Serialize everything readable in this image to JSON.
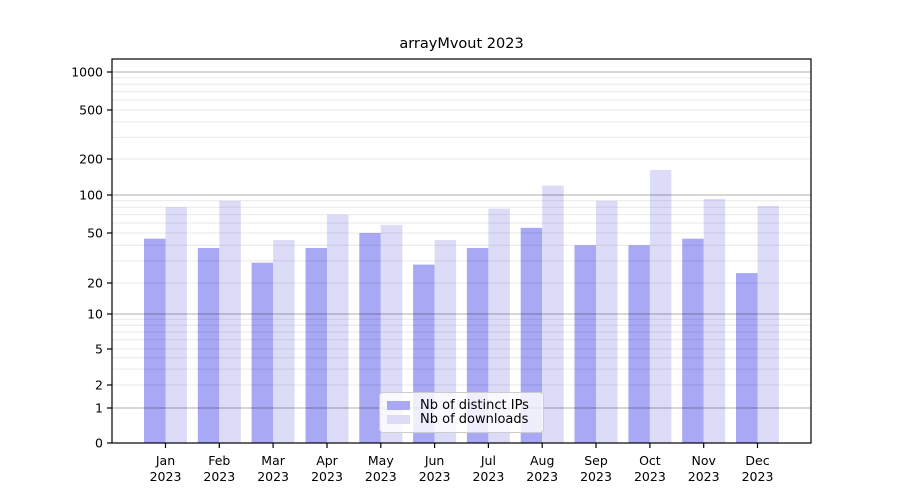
{
  "chart_data": {
    "type": "bar",
    "title": "arrayMvout 2023",
    "categories": [
      "Jan",
      "Feb",
      "Mar",
      "Apr",
      "May",
      "Jun",
      "Jul",
      "Aug",
      "Sep",
      "Oct",
      "Nov",
      "Dec"
    ],
    "category_year": "2023",
    "series": [
      {
        "name": "Nb of distinct IPs",
        "color": "#a8a8f5",
        "values": [
          45,
          38,
          29,
          38,
          50,
          28,
          38,
          55,
          40,
          40,
          45,
          24
        ]
      },
      {
        "name": "Nb of downloads",
        "color": "#dcdcf9",
        "values": [
          80,
          90,
          44,
          70,
          58,
          44,
          78,
          120,
          90,
          162,
          93,
          82
        ]
      }
    ],
    "y_axis": {
      "scale": "symlog",
      "ticks": [
        0,
        1,
        2,
        5,
        10,
        20,
        50,
        100,
        200,
        500,
        1000
      ]
    },
    "x_axis": {
      "label_line2": "2023"
    },
    "legend_position": "lower center",
    "grid": true,
    "colors": {
      "background": "#ffffff",
      "spine": "#000000",
      "major_grid": "#b0b0b0",
      "minor_grid": "#e9e9e9",
      "text": "#000000"
    }
  }
}
